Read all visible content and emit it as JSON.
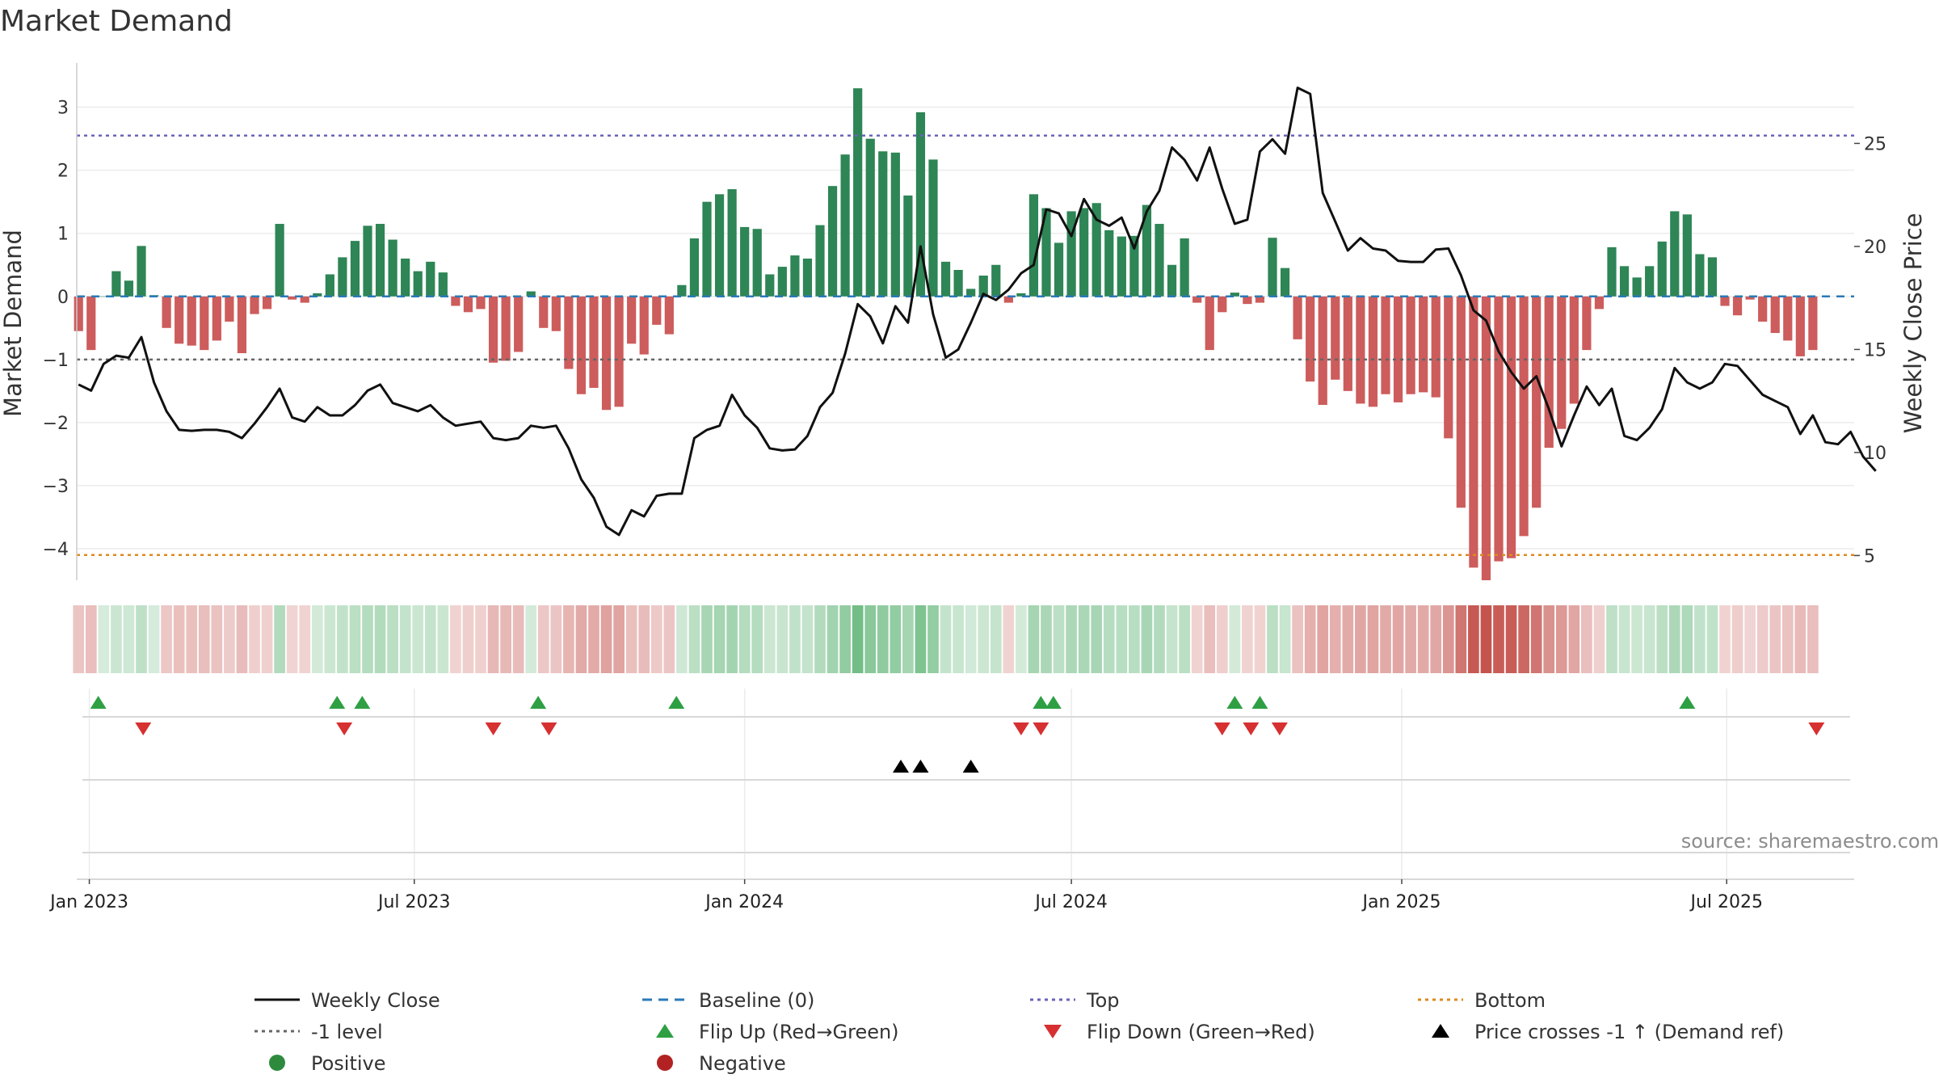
{
  "chart_data": {
    "type": "bar",
    "title": "Market Demand",
    "ylabel_left": "Market Demand",
    "ylabel_right": "Weekly Close Price",
    "source": "source: sharemaestro.com",
    "ylim_left": [
      -4.5,
      3.7
    ],
    "yticks_left": [
      {
        "v": 3,
        "l": "3"
      },
      {
        "v": 2,
        "l": "2"
      },
      {
        "v": 1,
        "l": "1"
      },
      {
        "v": 0,
        "l": "0"
      },
      {
        "v": -1,
        "l": "−1"
      },
      {
        "v": -2,
        "l": "−2"
      },
      {
        "v": -3,
        "l": "−3"
      },
      {
        "v": -4,
        "l": "−4"
      }
    ],
    "ylim_right": [
      3.8,
      28.9
    ],
    "yticks_right": [
      {
        "v": 25,
        "l": "25"
      },
      {
        "v": 20,
        "l": "20"
      },
      {
        "v": 15,
        "l": "15"
      },
      {
        "v": 10,
        "l": "10"
      },
      {
        "v": 5,
        "l": "5"
      }
    ],
    "reference_lines": {
      "top": 2.55,
      "minus1": -1,
      "bottom": -4.1
    },
    "x_start": "2022-12-25",
    "x_end": "2025-09-10",
    "x_ticks": [
      {
        "label": "Jan 2023",
        "date": "2023-01-01"
      },
      {
        "label": "Jul 2023",
        "date": "2023-07-01"
      },
      {
        "label": "Jan 2024",
        "date": "2024-01-01"
      },
      {
        "label": "Jul 2024",
        "date": "2024-07-01"
      },
      {
        "label": "Jan 2025",
        "date": "2025-01-01"
      },
      {
        "label": "Jul 2025",
        "date": "2025-07-01"
      }
    ],
    "weeks_start": "2022-12-26",
    "demand_values": [
      -0.55,
      -0.85,
      0,
      0.4,
      0.25,
      0.8,
      0.02,
      -0.5,
      -0.75,
      -0.78,
      -0.85,
      -0.7,
      -0.4,
      -0.9,
      -0.28,
      -0.2,
      1.15,
      -0.05,
      -0.1,
      0.05,
      0.35,
      0.62,
      0.88,
      1.12,
      1.15,
      0.9,
      0.6,
      0.4,
      0.55,
      0.38,
      -0.15,
      -0.25,
      -0.2,
      -1.05,
      -1.02,
      -0.88,
      0.08,
      -0.5,
      -0.55,
      -1.15,
      -1.55,
      -1.45,
      -1.8,
      -1.75,
      -0.75,
      -0.92,
      -0.45,
      -0.6,
      0.18,
      0.92,
      1.5,
      1.62,
      1.7,
      1.1,
      1.07,
      0.35,
      0.47,
      0.65,
      0.6,
      1.13,
      1.75,
      2.25,
      3.3,
      2.5,
      2.3,
      2.28,
      1.6,
      2.92,
      2.17,
      0.55,
      0.42,
      0.12,
      0.33,
      0.5,
      -0.1,
      0.05,
      1.62,
      1.4,
      0.85,
      1.35,
      1.4,
      1.48,
      1.05,
      0.95,
      0.96,
      1.45,
      1.15,
      0.5,
      0.92,
      -0.1,
      -0.85,
      -0.25,
      0.06,
      -0.12,
      -0.1,
      0.93,
      0.45,
      -0.68,
      -1.35,
      -1.72,
      -1.32,
      -1.5,
      -1.7,
      -1.75,
      -1.55,
      -1.68,
      -1.55,
      -1.52,
      -1.6,
      -2.25,
      -3.35,
      -4.3,
      -4.5,
      -4.2,
      -4.15,
      -3.8,
      -3.35,
      -2.4,
      -2.1,
      -1.7,
      -0.85,
      -0.2,
      0.78,
      0.48,
      0.3,
      0.48,
      0.87,
      1.35,
      1.3,
      0.67,
      0.62,
      -0.15,
      -0.3,
      -0.05,
      -0.4,
      -0.58,
      -0.7,
      -0.95,
      -0.85
    ],
    "close_values": [
      13.3,
      13.0,
      14.3,
      14.7,
      14.6,
      15.6,
      13.4,
      12.0,
      11.1,
      11.05,
      11.1,
      11.1,
      11.0,
      10.7,
      11.4,
      12.2,
      13.1,
      11.7,
      11.5,
      12.2,
      11.8,
      11.8,
      12.3,
      13.0,
      13.3,
      12.4,
      12.2,
      12.0,
      12.3,
      11.7,
      11.3,
      11.4,
      11.5,
      10.7,
      10.6,
      10.7,
      11.3,
      11.2,
      11.3,
      10.2,
      8.7,
      7.8,
      6.4,
      6.0,
      7.2,
      6.9,
      7.9,
      8.0,
      8.0,
      10.7,
      11.1,
      11.3,
      12.8,
      11.8,
      11.2,
      10.2,
      10.1,
      10.15,
      10.8,
      12.2,
      12.9,
      14.8,
      17.2,
      16.6,
      15.3,
      17.1,
      16.3,
      20.0,
      16.7,
      14.6,
      15.0,
      16.3,
      17.7,
      17.4,
      17.9,
      18.7,
      19.1,
      21.8,
      21.6,
      20.5,
      22.3,
      21.3,
      21.0,
      21.4,
      19.9,
      21.7,
      22.7,
      24.8,
      24.2,
      23.2,
      24.8,
      22.8,
      21.1,
      21.3,
      24.6,
      25.2,
      24.5,
      27.7,
      27.4,
      22.6,
      21.2,
      19.8,
      20.4,
      19.9,
      19.8,
      19.3,
      19.25,
      19.25,
      19.85,
      19.9,
      18.6,
      16.9,
      16.4,
      14.9,
      13.9,
      13.1,
      13.7,
      12.1,
      10.3,
      11.8,
      13.2,
      12.3,
      13.1,
      10.8,
      10.6,
      11.2,
      12.1,
      14.1,
      13.4,
      13.1,
      13.4,
      14.3,
      14.2,
      13.5,
      12.8,
      12.5,
      12.2,
      10.9,
      11.8,
      10.5,
      10.4,
      11.0,
      9.8,
      9.1
    ],
    "flip_up_dates": [
      "2023-01-06",
      "2023-05-19",
      "2023-06-02",
      "2023-09-08",
      "2023-11-24",
      "2024-06-14",
      "2024-06-21",
      "2024-09-30",
      "2024-10-14",
      "2025-06-09"
    ],
    "flip_down_dates": [
      "2023-01-31",
      "2023-05-23",
      "2023-08-14",
      "2023-09-14",
      "2024-06-03",
      "2024-06-14",
      "2024-09-23",
      "2024-10-09",
      "2024-10-25",
      "2025-08-20"
    ],
    "price_cross_dates": [
      "2024-03-28",
      "2024-04-08",
      "2024-05-06"
    ],
    "legend": [
      {
        "label": "Weekly Close",
        "marker": "line",
        "color": "#111111"
      },
      {
        "label": "Baseline (0)",
        "marker": "dash",
        "color": "#2a7ab8"
      },
      {
        "label": "Top",
        "marker": "dot",
        "color": "#6a64b8"
      },
      {
        "label": "Bottom",
        "marker": "dot",
        "color": "#de8a1e"
      },
      {
        "label": "-1 level",
        "marker": "dot",
        "color": "#666666"
      },
      {
        "label": "Flip Up (Red→Green)",
        "marker": "tri-up",
        "color": "#2ea043"
      },
      {
        "label": "Flip Down (Green→Red)",
        "marker": "tri-down",
        "color": "#d63031"
      },
      {
        "label": "Price crosses -1 ↑ (Demand ref)",
        "marker": "tri-up",
        "color": "#000000"
      },
      {
        "label": "Positive",
        "marker": "circle",
        "color": "#2e8b3e"
      },
      {
        "label": "Negative",
        "marker": "circle",
        "color": "#b22222"
      }
    ],
    "colors": {
      "positive": "#2e8555",
      "negative": "#cd5c5c",
      "close": "#111111",
      "baseline": "#2a7ab8",
      "top": "#6a64b8",
      "bottom": "#de8a1e",
      "minus1": "#666666"
    }
  }
}
